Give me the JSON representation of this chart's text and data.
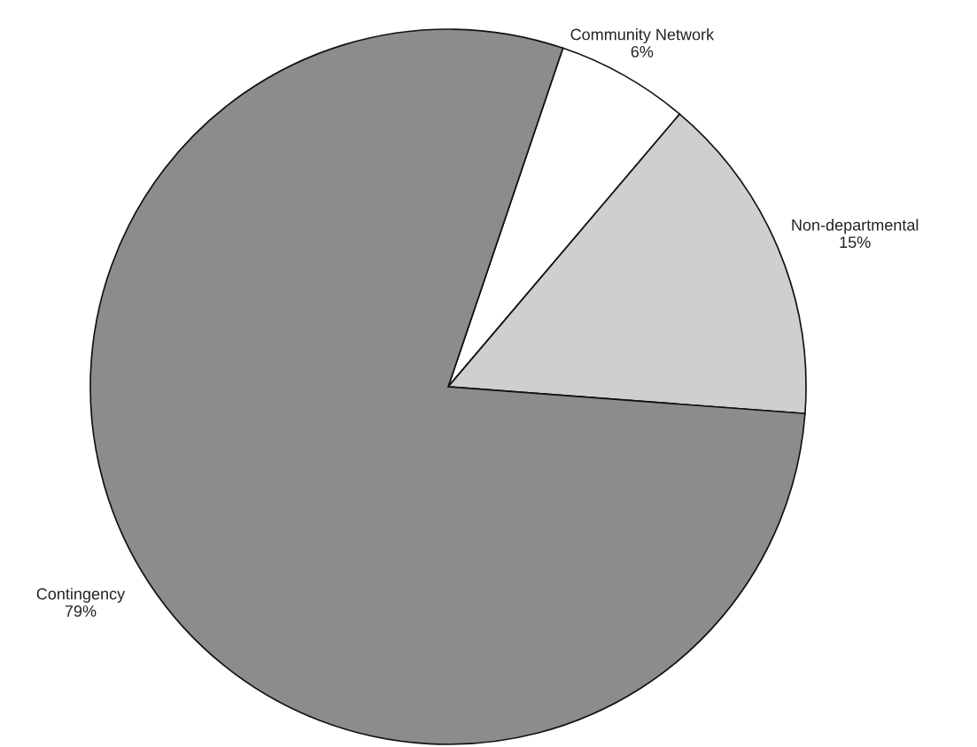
{
  "chart_data": {
    "type": "pie",
    "categories": [
      "Community Network",
      "Non-departmental",
      "Contingency"
    ],
    "values": [
      6,
      15,
      79
    ],
    "value_labels": [
      "6%",
      "15%",
      "79%"
    ],
    "colors": [
      "#ffffff",
      "#cfcfcf",
      "#8c8c8c"
    ],
    "legend": false
  }
}
